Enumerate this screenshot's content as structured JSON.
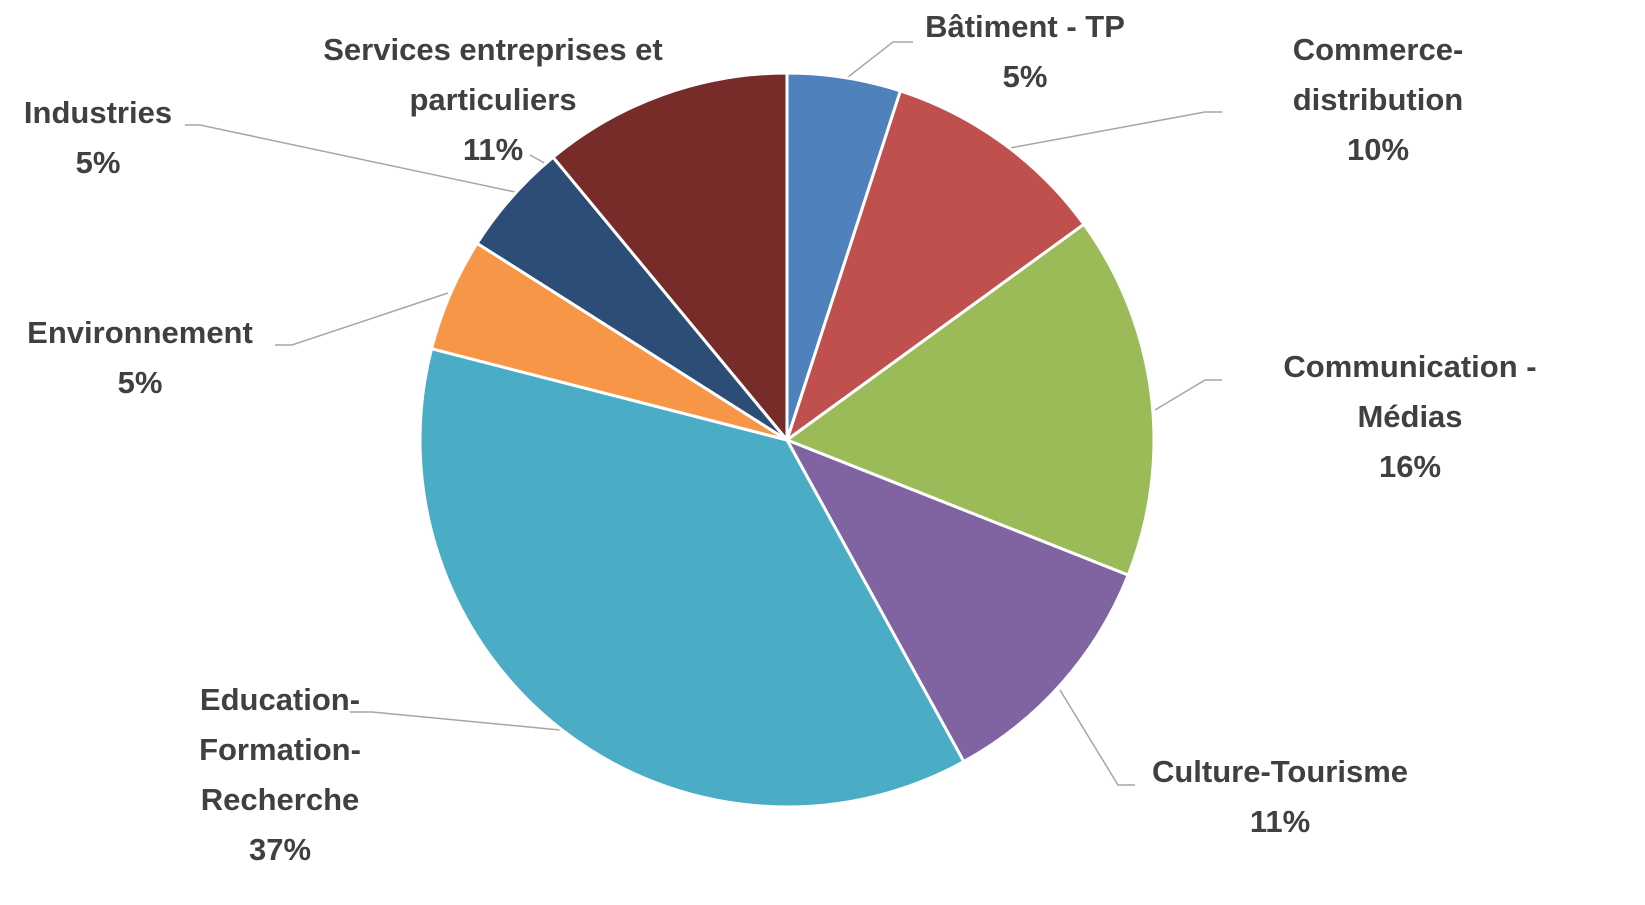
{
  "chart_data": {
    "type": "pie",
    "categories": [
      "Bâtiment - TP",
      "Commerce-distribution",
      "Communication - Médias",
      "Culture-Tourisme",
      "Education-Formation-Recherche",
      "Environnement",
      "Industries",
      "Services entreprises et particuliers"
    ],
    "values": [
      5,
      10,
      16,
      11,
      37,
      5,
      5,
      11
    ],
    "value_labels": [
      "5%",
      "10%",
      "16%",
      "11%",
      "37%",
      "5%",
      "5%",
      "11%"
    ],
    "colors": [
      "#4f81bd",
      "#c0504d",
      "#9bbb59",
      "#8064a2",
      "#4bacc6",
      "#f79646",
      "#2c4d75",
      "#772c2a"
    ]
  }
}
